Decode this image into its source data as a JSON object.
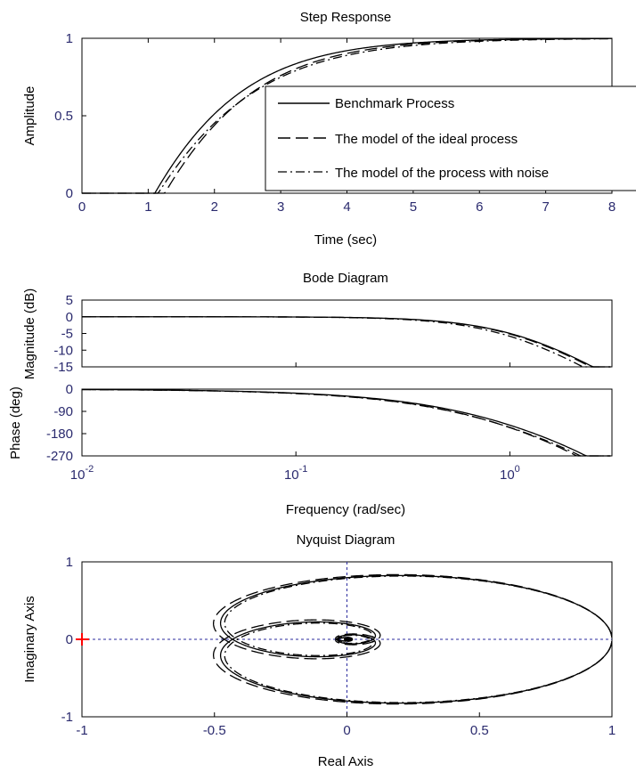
{
  "chart_data": [
    {
      "type": "line",
      "title": "Step Response",
      "xlabel": "Time (sec)",
      "ylabel": "Amplitude",
      "xlim": [
        0,
        8
      ],
      "ylim": [
        0,
        1
      ],
      "xticks": [
        "0",
        "1",
        "2",
        "3",
        "4",
        "5",
        "6",
        "7",
        "8"
      ],
      "yticks": [
        "0",
        "0.5",
        "1"
      ],
      "legend": {
        "position": "right",
        "entries": [
          {
            "label": "Benchmark Process",
            "style": "solid"
          },
          {
            "label": "The model of the ideal process",
            "style": "dashed"
          },
          {
            "label": "The model of the process with noise",
            "style": "dashdot"
          }
        ]
      },
      "series": [
        {
          "style": "solid",
          "delay": 1.1,
          "tau": 0.88
        },
        {
          "style": "dashed",
          "delay": 1.25,
          "tau": 0.9
        },
        {
          "style": "dashdot",
          "delay": 1.15,
          "tau": 0.98
        }
      ]
    },
    {
      "type": "line",
      "title": "Bode Diagram",
      "xlabel": "Frequency  (rad/sec)",
      "xscale": "log",
      "xlim": [
        0.01,
        3
      ],
      "xticks": [
        {
          "base": "10",
          "exp": "-2"
        },
        {
          "base": "10",
          "exp": "-1"
        },
        {
          "base": "10",
          "exp": "0"
        }
      ],
      "magnitude": {
        "ylabel": "Magnitude (dB)",
        "ylim": [
          -15,
          5
        ],
        "yticks": [
          "5",
          "0",
          "-5",
          "-10",
          "-15"
        ]
      },
      "phase": {
        "ylabel": "Phase (deg)",
        "ylim": [
          -270,
          0
        ],
        "yticks": [
          "0",
          "-90",
          "-180",
          "-270"
        ]
      },
      "series": [
        {
          "style": "solid",
          "delay": 1.1,
          "tau": 0.88
        },
        {
          "style": "dashed",
          "delay": 1.25,
          "tau": 0.9
        },
        {
          "style": "dashdot",
          "delay": 1.15,
          "tau": 0.98
        }
      ]
    },
    {
      "type": "line",
      "title": "Nyquist Diagram",
      "xlabel": "Real Axis",
      "ylabel": "Imaginary Axis",
      "xlim": [
        -1,
        1
      ],
      "ylim": [
        -1,
        1
      ],
      "xticks": [
        "-1",
        "-0.5",
        "0",
        "0.5",
        "1"
      ],
      "yticks": [
        "1",
        "0",
        "-1"
      ],
      "critical_point": [
        -1,
        0
      ],
      "critical_color": "#ff0000",
      "series": [
        {
          "style": "solid",
          "delay": 1.1,
          "tau": 0.88
        },
        {
          "style": "dashed",
          "delay": 1.25,
          "tau": 0.9
        },
        {
          "style": "dashdot",
          "delay": 1.15,
          "tau": 0.98
        }
      ]
    }
  ],
  "colors": {
    "axes": "#000000",
    "ticks": "#2a2a6e",
    "grid": "#2a2a9e",
    "critical": "#ff0000"
  }
}
